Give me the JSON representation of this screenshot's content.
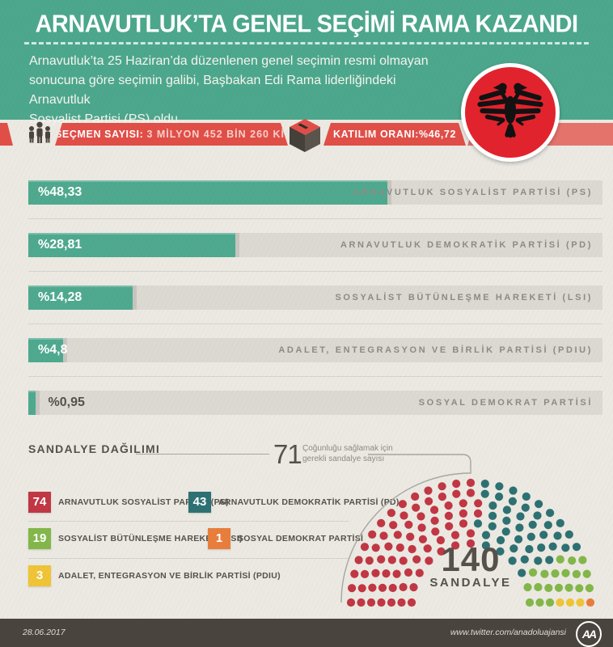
{
  "header": {
    "title": "ARNAVUTLUK’TA GENEL SEÇİMİ RAMA KAZANDI",
    "intro_lines": [
      "Arnavutluk’ta 25 Haziran’da düzenlenen genel seçimin resmi olmayan",
      "sonucuna göre seçimin galibi, Başbakan Edi Rama liderliğindeki Arnavutluk",
      "Sosyalist Partisi (PS) oldu"
    ]
  },
  "stats_banner": {
    "voters_label": "SEÇMEN SAYISI:",
    "voters_value": "3 MİLYON 452 BİN 260 KİŞİ",
    "turnout_label": "KATILIM ORANI:",
    "turnout_value": "%46,72"
  },
  "colors": {
    "header_teal": "#4ca78d",
    "banner_red": "#e04e48",
    "flag_red": "#e1232d",
    "bar_green": "#4fa98f",
    "bar_track": "#dbd9d2",
    "background_beige": "#ebe9e2",
    "footer_brown": "#4a443e",
    "text_dark": "#55514b",
    "text_gray": "#8c8b85"
  },
  "chart_data": [
    {
      "type": "bar",
      "title": "Genel seçim oy oranları",
      "categories": [
        "ARNAVUTLUK SOSYALİST PARTİSİ (PS)",
        "ARNAVUTLUK DEMOKRATİK PARTİSİ (PD)",
        "SOSYALİST BÜTÜNLEŞME HAREKETİ (LSI)",
        "ADALET, ENTEGRASYON VE BİRLİK PARTİSİ (PDIU)",
        "SOSYAL DEMOKRAT PARTİSİ"
      ],
      "values": [
        48.33,
        28.81,
        14.28,
        4.8,
        0.95
      ],
      "value_labels": [
        "%48,33",
        "%28,81",
        "%14,28",
        "%4,8",
        "%0,95"
      ],
      "fill_percents": [
        62.5,
        36.0,
        18.2,
        6.1,
        1.2
      ],
      "xlim": [
        0,
        77
      ],
      "bar_color": "#4fa98f",
      "track_color": "#dbd9d2"
    },
    {
      "type": "parliament",
      "title": "SANDALYE DAĞILIMI",
      "total": 140,
      "total_label": "SANDALYE",
      "majority": 71,
      "majority_note": "Çoğunluğu sağlamak için gerekli sandalye sayısı",
      "series": [
        {
          "name": "ARNAVUTLUK SOSYALİST PARTİSİ (PS)",
          "seats": 74,
          "color": "#c13744"
        },
        {
          "name": "ARNAVUTLUK DEMOKRATİK PARTİSİ (PD)",
          "seats": 43,
          "color": "#2e7173"
        },
        {
          "name": "SOSYALİST BÜTÜNLEŞME HAREKETİ (LSI)",
          "seats": 19,
          "color": "#83b74a"
        },
        {
          "name": "SOSYAL DEMOKRAT PARTİSİ",
          "seats": 1,
          "color": "#e87e3c"
        },
        {
          "name": "ADALET, ENTEGRASYON VE BİRLİK PARTİSİ (PDIU)",
          "seats": 3,
          "color": "#efc436"
        }
      ],
      "seat_fill_order": [
        0,
        1,
        2,
        4,
        3
      ],
      "rows": [
        13,
        15,
        18,
        20,
        22,
        25,
        27
      ]
    }
  ],
  "footer": {
    "date": "28.06.2017",
    "url": "www.twitter.com/anadoluajansi",
    "logo": "AA"
  }
}
